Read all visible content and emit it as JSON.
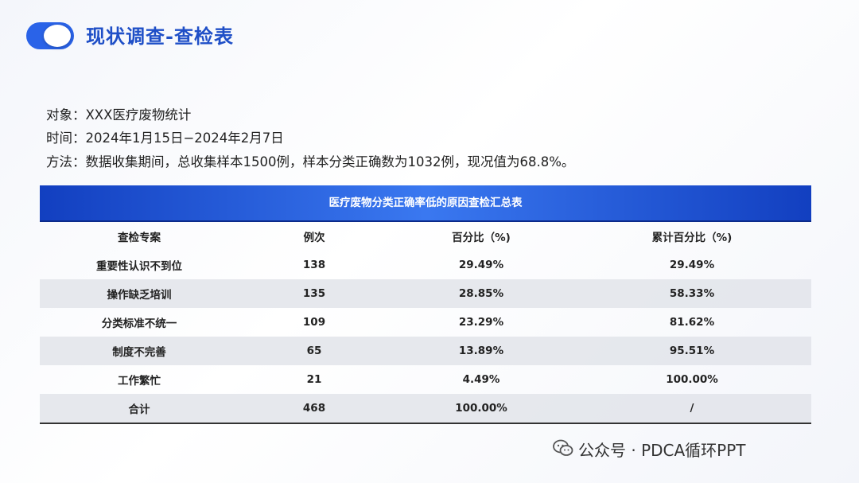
{
  "header": {
    "title": "现状调查-查检表"
  },
  "info": {
    "object": "对象：XXX医疗废物统计",
    "time": "时间：2024年1月15日−2024年2月7日",
    "method": "方法：数据收集期间，总收集样本1500例，样本分类正确数为1032例，现况值为68.8%。"
  },
  "table": {
    "title": "医疗废物分类正确率低的原因查检汇总表",
    "headers": [
      "查检专案",
      "例次",
      "百分比（%)",
      "累计百分比（%)"
    ],
    "rows": [
      [
        "重要性认识不到位",
        "138",
        "29.49%",
        "29.49%"
      ],
      [
        "操作缺乏培训",
        "135",
        "28.85%",
        "58.33%"
      ],
      [
        "分类标准不统一",
        "109",
        "23.29%",
        "81.62%"
      ],
      [
        "制度不完善",
        "65",
        "13.89%",
        "95.51%"
      ],
      [
        "工作繁忙",
        "21",
        "4.49%",
        "100.00%"
      ],
      [
        "合计",
        "468",
        "100.00%",
        "/"
      ]
    ]
  },
  "footer": {
    "text": "公众号 · PDCA循环PPT"
  },
  "colors": {
    "accent": "#1f4fc7",
    "banner": "#2a63e8"
  }
}
